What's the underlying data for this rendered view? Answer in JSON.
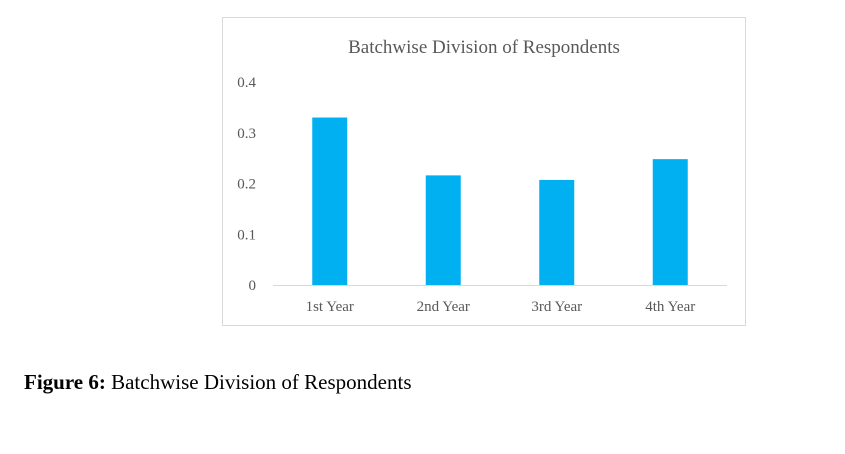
{
  "chart_data": {
    "type": "bar",
    "title": "Batchwise Division of Respondents",
    "categories": [
      "1st Year",
      "2nd Year",
      "3rd Year",
      "4th Year"
    ],
    "values": [
      0.33,
      0.216,
      0.207,
      0.248
    ],
    "ylim": [
      0,
      0.4
    ],
    "yticks": [
      "0",
      "0.1",
      "0.2",
      "0.3",
      "0.4"
    ],
    "ytick_values": [
      0,
      0.1,
      0.2,
      0.3,
      0.4
    ],
    "xlabel": "",
    "ylabel": "",
    "grid": false,
    "legend": "none",
    "bar_color": "#00B0F0",
    "axis_color": "#d9d9d9"
  },
  "caption": {
    "label": "Figure 6:",
    "text": " Batchwise Division of Respondents"
  }
}
